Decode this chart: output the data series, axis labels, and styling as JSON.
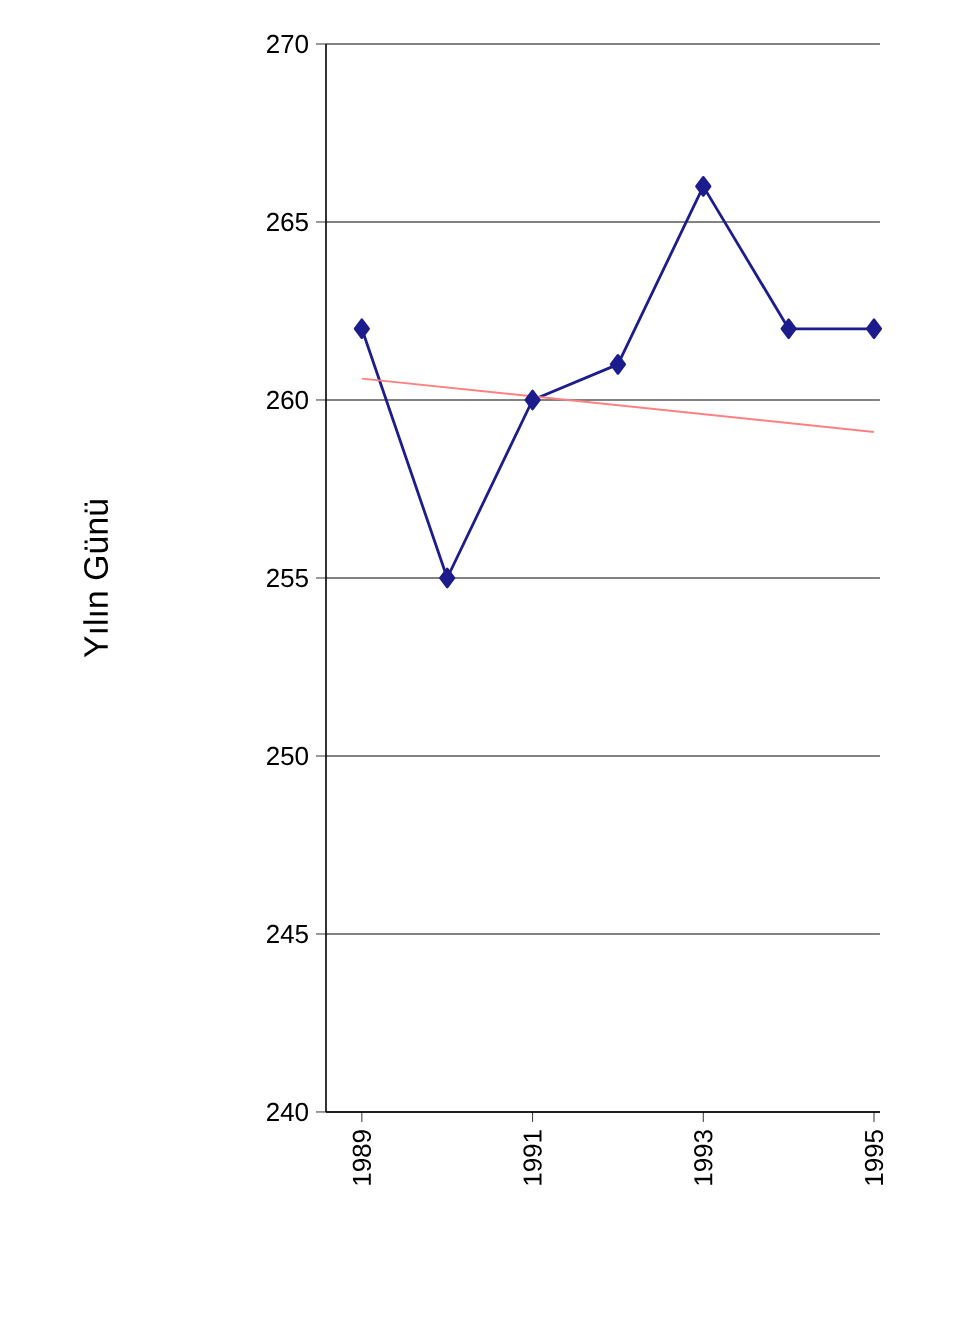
{
  "chart_data": {
    "type": "line",
    "ylabel": "Yılın Günü",
    "xlim": [
      1988.58,
      1995.07
    ],
    "xticks": [
      1989,
      1991,
      1993,
      1995
    ],
    "ylim": [
      240,
      270
    ],
    "yticks": [
      240,
      245,
      250,
      255,
      260,
      265,
      270
    ],
    "grid": "y",
    "series": [
      {
        "color": "#1c1c8c",
        "marker": "diamond",
        "x": [
          1989,
          1990,
          1991,
          1992,
          1993,
          1994,
          1995
        ],
        "values": [
          262,
          255,
          260,
          261,
          266,
          262,
          262
        ]
      },
      {
        "color": "#ff8080",
        "marker": "none",
        "x": [
          1989,
          1995
        ],
        "values": [
          260.6,
          259.1
        ]
      }
    ]
  }
}
